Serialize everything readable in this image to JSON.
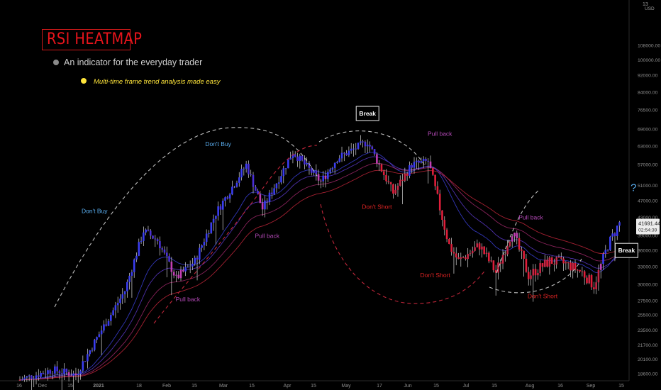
{
  "title": "RSI HEATMAP",
  "subtitle": "An indicator for the everyday trader",
  "tagline": "Multi-time frame trend analysis made easy",
  "colors": {
    "background": "#000000",
    "title_red": "#e8141b",
    "tagline_yellow": "#ffe53b",
    "bull_blue": "#3a3df0",
    "bear_red": "#e01e3a",
    "magenta": "#c23fb5",
    "annot_blue": "#5aaef0",
    "annot_red": "#e02424",
    "annot_magenta": "#b54ab8"
  },
  "chart_data": {
    "type": "candlestick",
    "price_axis": {
      "currency": "USD",
      "top_label": "13",
      "ticks": [
        108000,
        100000,
        92000,
        84000,
        76500,
        69000,
        63000,
        57000,
        51000,
        47000,
        43000,
        39000,
        36000,
        33000,
        30000,
        27500,
        25500,
        23500,
        21700,
        20100,
        18600
      ],
      "tick_labels": [
        "108000.00",
        "100000.00",
        "92000.00",
        "84000.00",
        "76500.00",
        "69000.00",
        "63000.00",
        "57000.00",
        "51000.00",
        "47000.00",
        "43000.00",
        "39000.00",
        "36000.00",
        "33000.00",
        "30000.00",
        "27500.00",
        "25500.00",
        "23500.00",
        "21700.00",
        "20100.00",
        "18600.00"
      ],
      "scale": "log",
      "current_price": "41691.44",
      "countdown": "02:54:39"
    },
    "time_axis": {
      "tick_labels": [
        "16",
        "Dec",
        "15",
        "2021",
        "18",
        "Feb",
        "15",
        "Mar",
        "15",
        "Apr",
        "15",
        "May",
        "17",
        "Jun",
        "15",
        "Jul",
        "15",
        "Aug",
        "16",
        "Sep",
        "15"
      ],
      "bold_labels": [
        "2021"
      ],
      "start": "2020-11-16",
      "end": "2021-07-31"
    },
    "price_path": [
      [
        "2020-11-16",
        18000
      ],
      [
        "2020-11-30",
        19000
      ],
      [
        "2020-12-10",
        18500
      ],
      [
        "2020-12-20",
        23000
      ],
      [
        "2020-12-31",
        29000
      ],
      [
        "2021-01-08",
        40000
      ],
      [
        "2021-01-14",
        38000
      ],
      [
        "2021-01-22",
        31000
      ],
      [
        "2021-01-30",
        34000
      ],
      [
        "2021-02-08",
        44000
      ],
      [
        "2021-02-21",
        57000
      ],
      [
        "2021-02-28",
        45000
      ],
      [
        "2021-03-13",
        61000
      ],
      [
        "2021-03-25",
        52000
      ],
      [
        "2021-04-01",
        59000
      ],
      [
        "2021-04-14",
        64500
      ],
      [
        "2021-04-25",
        49000
      ],
      [
        "2021-05-03",
        57000
      ],
      [
        "2021-05-10",
        58000
      ],
      [
        "2021-05-19",
        37000
      ],
      [
        "2021-05-23",
        34000
      ],
      [
        "2021-06-01",
        37000
      ],
      [
        "2021-06-08",
        32000
      ],
      [
        "2021-06-15",
        40000
      ],
      [
        "2021-06-22",
        31500
      ],
      [
        "2021-07-01",
        34000
      ],
      [
        "2021-07-08",
        33500
      ],
      [
        "2021-07-15",
        32000
      ],
      [
        "2021-07-20",
        29800
      ],
      [
        "2021-07-26",
        37000
      ],
      [
        "2021-07-31",
        41691
      ]
    ],
    "annotations": [
      {
        "text": "Don't Buy",
        "date": "2020-12-18",
        "price": 44000,
        "color": "annot_blue",
        "name": "dont-buy-1"
      },
      {
        "text": "Don't Buy",
        "date": "2021-02-09",
        "price": 63000,
        "color": "annot_blue",
        "name": "dont-buy-2"
      },
      {
        "text": "Pull back",
        "date": "2021-03-02",
        "price": 38500,
        "color": "annot_magenta",
        "name": "pull-back-1"
      },
      {
        "text": "Pull back",
        "date": "2021-01-27",
        "price": 27400,
        "color": "annot_magenta",
        "name": "pull-back-2"
      },
      {
        "text": "Pull back",
        "date": "2021-05-15",
        "price": 66500,
        "color": "annot_magenta",
        "name": "pull-back-3"
      },
      {
        "text": "Pull back",
        "date": "2021-06-23",
        "price": 42500,
        "color": "annot_magenta",
        "name": "pull-back-4"
      },
      {
        "text": "Don't Short",
        "date": "2021-04-18",
        "price": 45000,
        "color": "annot_red",
        "name": "dont-short-1"
      },
      {
        "text": "Don't Short",
        "date": "2021-05-13",
        "price": 31200,
        "color": "annot_red",
        "name": "dont-short-2"
      },
      {
        "text": "Don't Short",
        "date": "2021-06-28",
        "price": 27900,
        "color": "annot_red",
        "name": "dont-short-3"
      }
    ],
    "boxes": [
      {
        "text": "Break",
        "date": "2021-04-14",
        "price": 75000,
        "name": "break-label-top"
      },
      {
        "text": "Break",
        "date": "2021-08-03",
        "price": 36000,
        "name": "break-label-right"
      }
    ],
    "question_marks": [
      {
        "text": "?",
        "date": "2021-08-06",
        "price": 49500,
        "color": "annot_blue",
        "name": "question-mark-blue"
      },
      {
        "text": "?",
        "date": "2021-09-01",
        "price": 36500,
        "color": "annot_magenta",
        "name": "question-mark-magenta"
      }
    ]
  }
}
